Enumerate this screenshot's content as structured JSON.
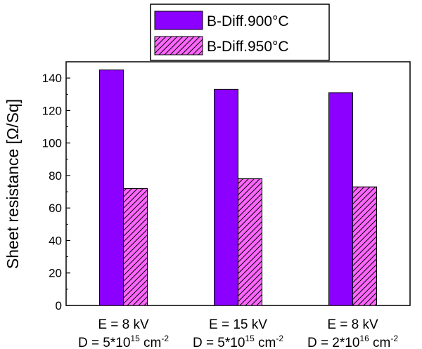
{
  "chart_data": {
    "type": "bar",
    "title": "",
    "xlabel": "",
    "ylabel": "Sheet resistance [Ω/Sq]",
    "ylim": [
      0,
      150
    ],
    "yticks": [
      0,
      20,
      40,
      60,
      80,
      100,
      120,
      140
    ],
    "legend_position": "top",
    "categories": [
      {
        "line1": "E = 8 kV",
        "line2_prefix": "D = 5*10",
        "exponent": "15",
        "line2_suffix": " cm",
        "unit_exponent": "-2"
      },
      {
        "line1": "E = 15 kV",
        "line2_prefix": "D = 5*10",
        "exponent": "15",
        "line2_suffix": " cm",
        "unit_exponent": "-2"
      },
      {
        "line1": "E = 8 kV",
        "line2_prefix": "D = 2*10",
        "exponent": "16",
        "line2_suffix": " cm",
        "unit_exponent": "-2"
      }
    ],
    "series": [
      {
        "name": "B-Diff.900°C",
        "values": [
          145,
          133,
          131
        ],
        "color": "#8b00ff",
        "pattern": "solid"
      },
      {
        "name": "B-Diff.950°C",
        "values": [
          72,
          78,
          73
        ],
        "color": "#ff66ff",
        "pattern": "hatched"
      }
    ],
    "grid": false
  }
}
